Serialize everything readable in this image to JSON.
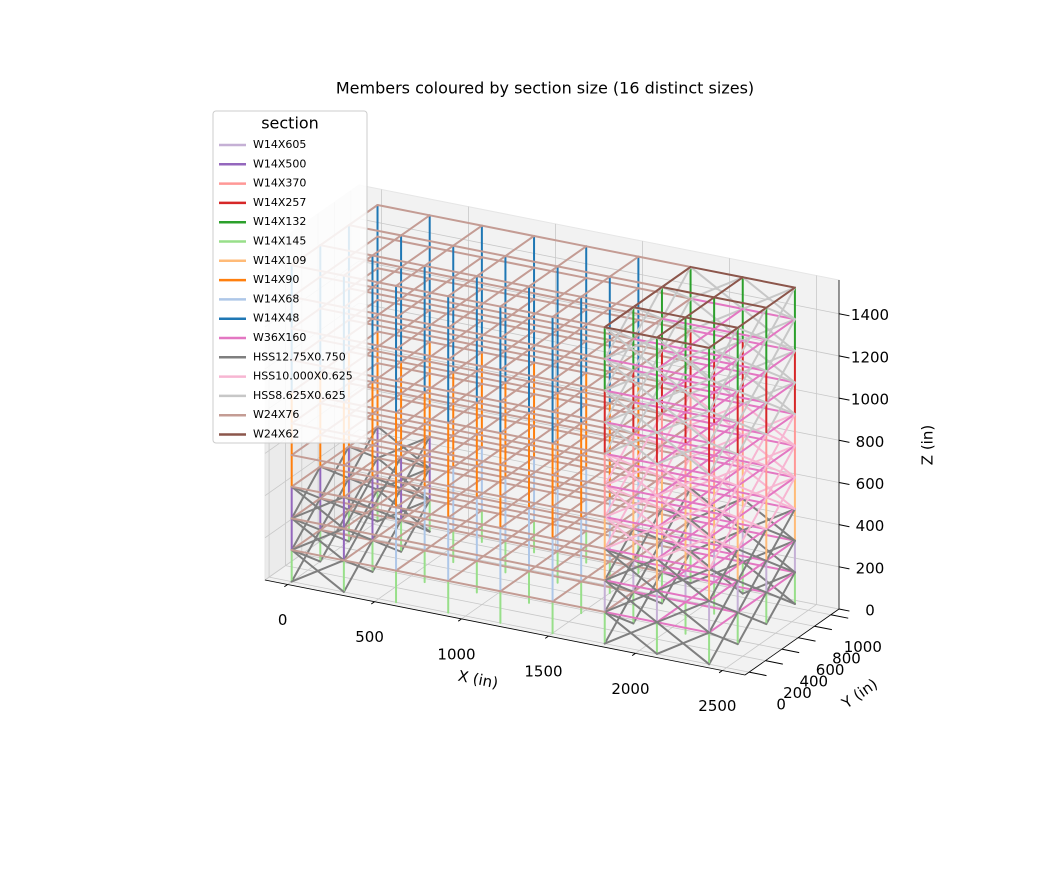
{
  "chart_data": {
    "type": "frame3d",
    "title": "Members coloured by section size (16 distinct sizes)",
    "x_label": "X (in)",
    "y_label": "Y (in)",
    "z_label": "Z (in)",
    "xlim": [
      -130,
      2630
    ],
    "ylim": [
      -50,
      1100
    ],
    "zlim": [
      0,
      1560
    ],
    "xticks": [
      0,
      500,
      1000,
      1500,
      2000,
      2500
    ],
    "yticks": [
      0,
      200,
      400,
      600,
      800,
      1000
    ],
    "zticks": [
      0,
      200,
      400,
      600,
      800,
      1000,
      1200,
      1400
    ],
    "grid": true,
    "legend_title": "section",
    "legend_loc": "upper left",
    "x_grid": [
      0,
      300,
      600,
      900,
      1200,
      1500,
      1800,
      2100,
      2400
    ],
    "y_grid": [
      0,
      350,
      700,
      1050
    ],
    "z_levels": [
      0,
      150,
      300,
      450,
      600,
      750,
      900,
      1050,
      1200,
      1350,
      1500
    ],
    "series": [
      {
        "name": "W14X605",
        "color": "#c5b0d5",
        "kind": "column",
        "regions": [
          {
            "x": [
              1800,
              2400
            ],
            "z": [
              150,
              300
            ]
          }
        ]
      },
      {
        "name": "W14X500",
        "color": "#9467bd",
        "kind": "column",
        "regions": [
          {
            "x": [
              0,
              300
            ],
            "z": [
              150,
              450
            ]
          }
        ]
      },
      {
        "name": "W14X370",
        "color": "#ff9896",
        "kind": "column",
        "regions": [
          {
            "x": [
              1800,
              2400
            ],
            "z": [
              600,
              900
            ]
          }
        ]
      },
      {
        "name": "W14X257",
        "color": "#d62728",
        "kind": "column",
        "regions": [
          {
            "x": [
              1800,
              2400
            ],
            "z": [
              900,
              1200
            ]
          }
        ]
      },
      {
        "name": "W14X132",
        "color": "#2ca02c",
        "kind": "column",
        "regions": [
          {
            "x": [
              1800,
              2400
            ],
            "z": [
              1200,
              1500
            ]
          }
        ]
      },
      {
        "name": "W14X145",
        "color": "#98df8a",
        "kind": "column",
        "regions": [
          {
            "x": [
              0,
              2400
            ],
            "z": [
              0,
              150
            ]
          }
        ]
      },
      {
        "name": "W14X109",
        "color": "#ffbb78",
        "kind": "column",
        "regions": [
          {
            "x": [
              1800,
              2400
            ],
            "z": [
              300,
              600
            ]
          }
        ]
      },
      {
        "name": "W14X90",
        "color": "#ff7f0e",
        "kind": "column",
        "regions": [
          {
            "x": [
              0,
              1500
            ],
            "z": [
              450,
              900
            ]
          }
        ]
      },
      {
        "name": "W14X68",
        "color": "#aec7e8",
        "kind": "column",
        "regions": [
          {
            "x": [
              600,
              1500
            ],
            "z": [
              150,
              450
            ]
          }
        ]
      },
      {
        "name": "W14X48",
        "color": "#1f77b4",
        "kind": "column",
        "regions": [
          {
            "x": [
              0,
              1500
            ],
            "z": [
              900,
              1500
            ]
          }
        ]
      },
      {
        "name": "W36X160",
        "color": "#e377c2",
        "kind": "beam",
        "regions": [
          {
            "x": [
              1800,
              2400
            ],
            "z": [
              150,
              1350
            ]
          }
        ]
      },
      {
        "name": "HSS12.75X0.750",
        "color": "#7f7f7f",
        "kind": "brace",
        "regions": [
          {
            "x": [
              1800,
              2400
            ],
            "z": [
              0,
              450
            ]
          },
          {
            "x": [
              0,
              300
            ],
            "z": [
              0,
              450
            ]
          }
        ]
      },
      {
        "name": "HSS10.000X0.625",
        "color": "#f7b6d2",
        "kind": "brace",
        "regions": [
          {
            "x": [
              1800,
              2400
            ],
            "z": [
              450,
              900
            ]
          }
        ]
      },
      {
        "name": "HSS8.625X0.625",
        "color": "#c7c7c7",
        "kind": "brace",
        "regions": [
          {
            "x": [
              1800,
              2400
            ],
            "z": [
              900,
              1500
            ]
          }
        ]
      },
      {
        "name": "W24X76",
        "color": "#c49c94",
        "kind": "beam",
        "regions": [
          {
            "x": [
              0,
              1800
            ],
            "z": [
              150,
              1500
            ]
          }
        ]
      },
      {
        "name": "W24X62",
        "color": "#8c564b",
        "kind": "beam",
        "regions": [
          {
            "x": [
              1800,
              2400
            ],
            "z": [
              1500,
              1500
            ]
          }
        ]
      }
    ]
  }
}
